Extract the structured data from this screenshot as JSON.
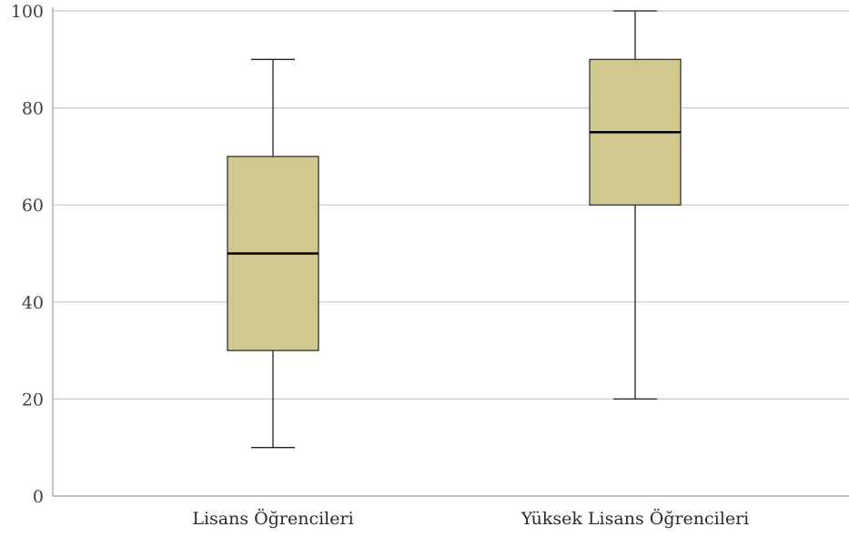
{
  "chart_data": {
    "type": "box",
    "title": "",
    "xlabel": "",
    "ylabel": "",
    "ylim": [
      0,
      100
    ],
    "yticks": [
      0,
      20,
      40,
      60,
      80,
      100
    ],
    "ytick_labels": [
      "0",
      "20",
      "40",
      "60",
      "80",
      "100"
    ],
    "grid": true,
    "categories": [
      "Lisans Öğrencileri",
      "Yüksek Lisans Öğrencileri"
    ],
    "boxes": [
      {
        "category": "Lisans Öğrencileri",
        "min": 10,
        "q1": 30,
        "median": 50,
        "q3": 70,
        "max": 90
      },
      {
        "category": "Yüksek Lisans Öğrencileri",
        "min": 20,
        "q1": 60,
        "median": 75,
        "q3": 90,
        "max": 100
      }
    ],
    "colors": {
      "box_fill": "#d1c890",
      "box_stroke": "#333333",
      "median": "#000000",
      "grid": "#c8c8c8",
      "axis": "#9a9a9a"
    }
  }
}
